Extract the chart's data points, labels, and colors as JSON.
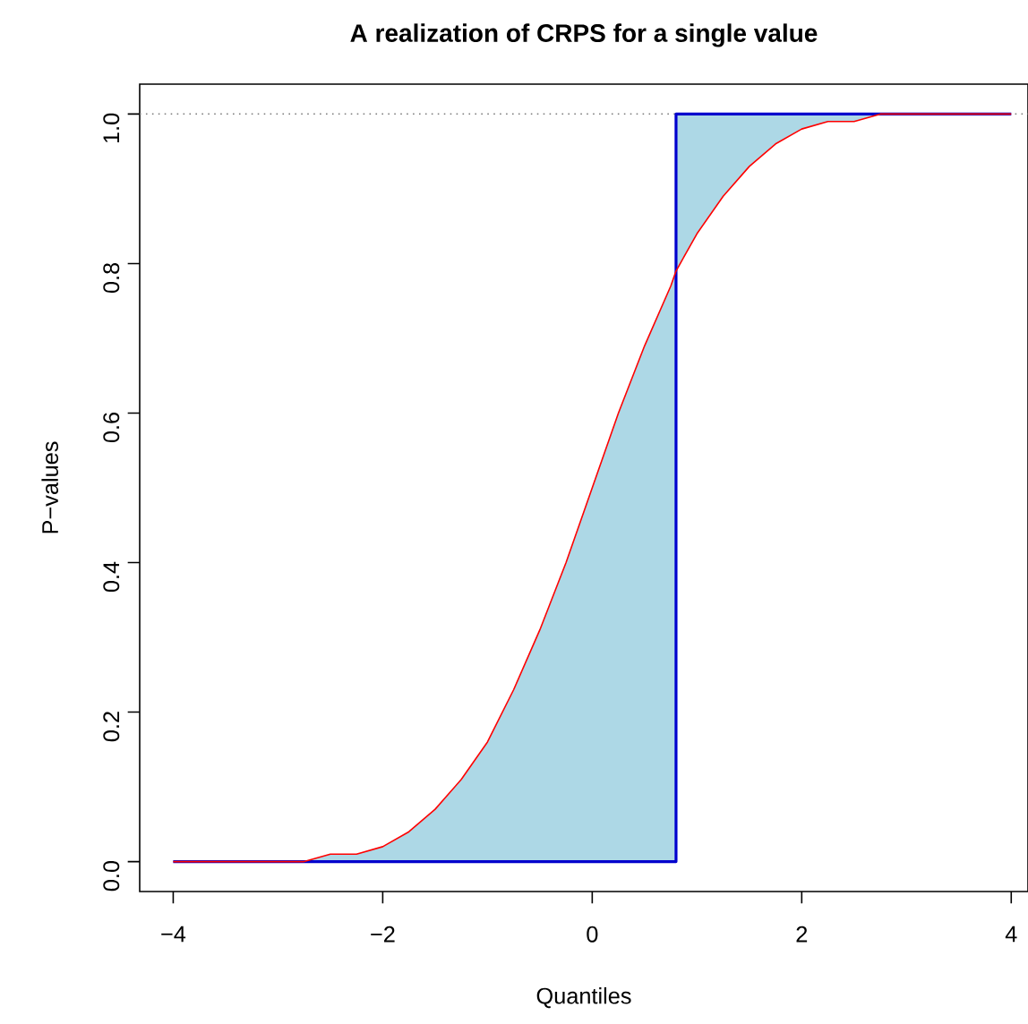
{
  "chart_data": {
    "type": "line",
    "title": "A realization of CRPS for a single value",
    "xlabel": "Quantiles",
    "ylabel": "P−values",
    "xlim": [
      -4.32,
      4.16
    ],
    "ylim": [
      -0.04,
      1.04
    ],
    "xticks": [
      {
        "value": -4,
        "label": "−4"
      },
      {
        "value": -2,
        "label": "−2"
      },
      {
        "value": 0,
        "label": "0"
      },
      {
        "value": 2,
        "label": "2"
      },
      {
        "value": 4,
        "label": "4"
      }
    ],
    "yticks": [
      {
        "value": 0,
        "label": "0.0"
      },
      {
        "value": 0.2,
        "label": "0.2"
      },
      {
        "value": 0.4,
        "label": "0.4"
      },
      {
        "value": 0.6,
        "label": "0.6"
      },
      {
        "value": 0.8,
        "label": "0.8"
      },
      {
        "value": 1,
        "label": "1.0"
      }
    ],
    "grid": false,
    "series": [
      {
        "type": "step",
        "color": "#0000cd",
        "x": [
          -4,
          0.8,
          4
        ],
        "values": [
          0,
          1,
          1
        ]
      },
      {
        "color": "#ff0000",
        "x": [
          -4,
          -3.5,
          -3,
          -2.75,
          -2.5,
          -2.25,
          -2,
          -1.75,
          -1.5,
          -1.25,
          -1,
          -0.75,
          -0.5,
          -0.25,
          0,
          0.25,
          0.5,
          0.75,
          0.8,
          0.8,
          1,
          1.25,
          1.5,
          1.75,
          2,
          2.25,
          2.5,
          2.75,
          3,
          3.5,
          4
        ],
        "values": [
          0,
          0,
          0,
          0,
          0.01,
          0.01,
          0.02,
          0.04,
          0.07,
          0.11,
          0.16,
          0.23,
          0.31,
          0.4,
          0.5,
          0.6,
          0.69,
          0.77,
          0.79,
          0.79,
          0.84,
          0.89,
          0.93,
          0.96,
          0.98,
          0.99,
          0.99,
          1,
          1,
          1,
          1
        ],
        "lower": [
          0,
          0,
          0,
          0,
          0,
          0,
          0,
          0,
          0,
          0,
          0,
          0,
          0,
          0,
          0,
          0,
          0,
          0,
          0,
          0.79,
          0.84,
          0.89,
          0.93,
          0.96,
          0.98,
          0.99,
          0.99,
          1,
          1,
          1,
          1
        ],
        "upper": [
          0,
          0,
          0,
          0,
          0.01,
          0.01,
          0.02,
          0.04,
          0.07,
          0.11,
          0.16,
          0.23,
          0.31,
          0.4,
          0.5,
          0.6,
          0.69,
          0.77,
          0.79,
          1,
          1,
          1,
          1,
          1,
          1,
          1,
          1,
          1,
          1,
          1,
          1
        ]
      }
    ],
    "ref_lines": [
      {
        "axis": "y",
        "value": 1,
        "color": "#808080",
        "line_style": "dotted"
      }
    ]
  }
}
